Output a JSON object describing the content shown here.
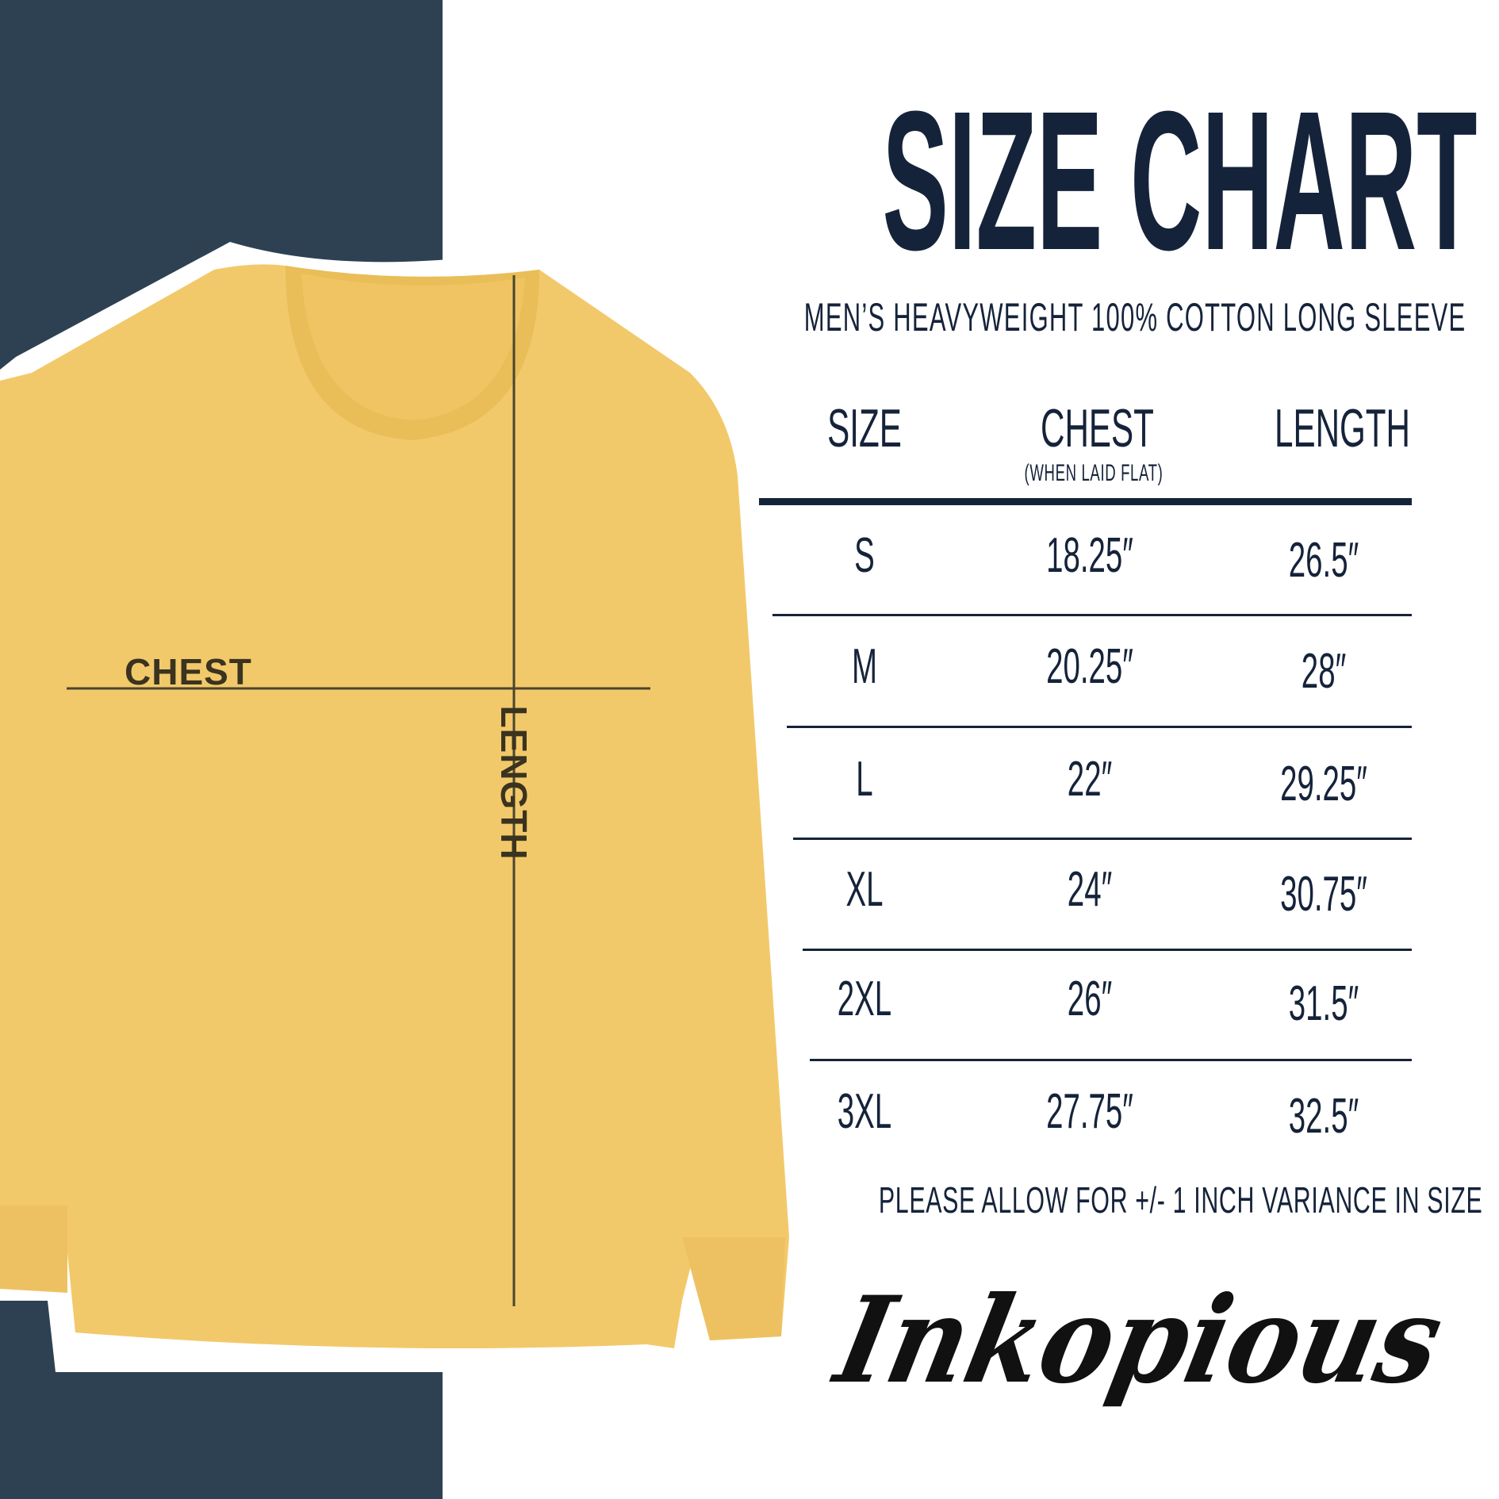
{
  "title": "SIZE CHART",
  "subtitle": "MEN’S HEAVYWEIGHT 100% COTTON LONG SLEEVE",
  "colors": {
    "navy_panel": "#2d4153",
    "text": "#15233a",
    "shirt": "#f2c96a"
  },
  "diagram": {
    "chest_label": "CHEST",
    "length_label": "LENGTH"
  },
  "table": {
    "headers": {
      "size": "SIZE",
      "chest": "CHEST",
      "chest_note": "(WHEN LAID FLAT)",
      "length": "LENGTH"
    },
    "rows": [
      {
        "size": "S",
        "chest": "18.25″",
        "length": "26.5″"
      },
      {
        "size": "M",
        "chest": "20.25″",
        "length": "28″"
      },
      {
        "size": "L",
        "chest": "22″",
        "length": "29.25″"
      },
      {
        "size": "XL",
        "chest": "24″",
        "length": "30.75″"
      },
      {
        "size": "2XL",
        "chest": "26″",
        "length": "31.5″"
      },
      {
        "size": "3XL",
        "chest": "27.75″",
        "length": "32.5″"
      }
    ]
  },
  "footer": "PLEASE ALLOW FOR +/- 1 INCH VARIANCE IN SIZE",
  "logo": "Inkopious"
}
